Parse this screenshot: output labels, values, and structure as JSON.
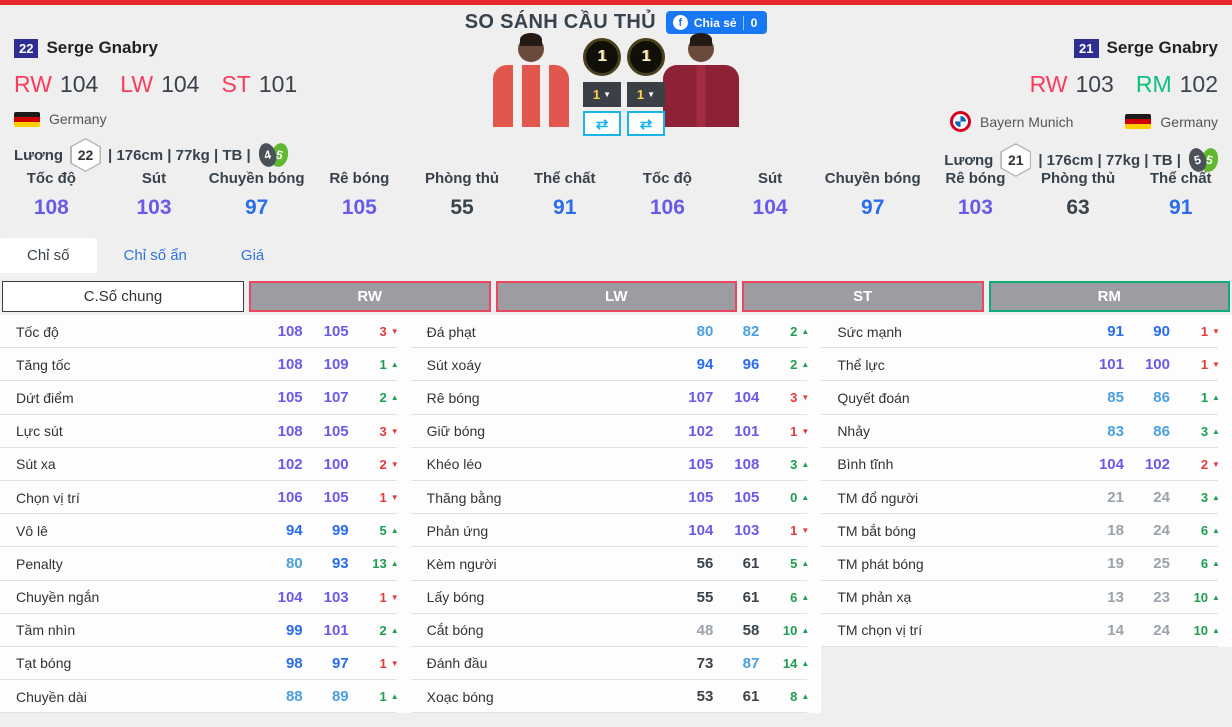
{
  "header": {
    "title": "SO SÁNH CẦU THỦ",
    "share": {
      "label": "Chia sẻ",
      "count": "0",
      "icon": "facebook-icon"
    }
  },
  "players": {
    "left": {
      "number": "22",
      "name": "Serge Gnabry",
      "positions": [
        {
          "pos": "RW",
          "ovr": "104",
          "color": "pink"
        },
        {
          "pos": "LW",
          "ovr": "104",
          "color": "pink"
        },
        {
          "pos": "ST",
          "ovr": "101",
          "color": "pink"
        }
      ],
      "nation": "Germany",
      "salary_label": "Lương",
      "salary": "22",
      "body_info": "| 176cm | 77kg | TB |",
      "feet": {
        "weak": "4",
        "strong": "5"
      }
    },
    "right": {
      "number": "21",
      "name": "Serge Gnabry",
      "positions": [
        {
          "pos": "RW",
          "ovr": "103",
          "color": "pink"
        },
        {
          "pos": "RM",
          "ovr": "102",
          "color": "green"
        }
      ],
      "club": "Bayern Munich",
      "nation": "Germany",
      "salary_label": "Lương",
      "salary": "21",
      "body_info": "| 176cm | 77kg | TB |",
      "feet": {
        "weak": "5",
        "strong": "5"
      }
    }
  },
  "controls": {
    "tiers": [
      "1",
      "1"
    ],
    "selects": [
      "1",
      "1"
    ],
    "swap_icon": "swap-arrows-icon"
  },
  "overview": {
    "items": [
      {
        "label": "Tốc độ",
        "value": 108
      },
      {
        "label": "Sút",
        "value": 103
      },
      {
        "label": "Chuyền bóng",
        "value": 97
      },
      {
        "label": "Rê bóng",
        "value": 105
      },
      {
        "label": "Phòng thủ",
        "value": 55
      },
      {
        "label": "Thể chất",
        "value": 91
      },
      {
        "label": "Tốc độ",
        "value": 106
      },
      {
        "label": "Sút",
        "value": 104
      },
      {
        "label": "Chuyền bóng",
        "value": 97
      },
      {
        "label": "Rê bóng",
        "value": 103
      },
      {
        "label": "Phòng thủ",
        "value": 63
      },
      {
        "label": "Thể chất",
        "value": 91
      }
    ]
  },
  "tabs": [
    {
      "label": "Chỉ số",
      "active": true
    },
    {
      "label": "Chỉ số ẩn",
      "active": false
    },
    {
      "label": "Giá",
      "active": false
    }
  ],
  "position_headers": [
    {
      "label": "C.Số chung",
      "variant": "plain"
    },
    {
      "label": "RW",
      "variant": "pink"
    },
    {
      "label": "LW",
      "variant": "pink"
    },
    {
      "label": "ST",
      "variant": "pink"
    },
    {
      "label": "RM",
      "variant": "green"
    }
  ],
  "comparison": {
    "columns": [
      {
        "rows": [
          {
            "label": "Tốc độ",
            "v1": 108,
            "v2": 105,
            "diff": 3,
            "dir": "down"
          },
          {
            "label": "Tăng tốc",
            "v1": 108,
            "v2": 109,
            "diff": 1,
            "dir": "up"
          },
          {
            "label": "Dứt điểm",
            "v1": 105,
            "v2": 107,
            "diff": 2,
            "dir": "up"
          },
          {
            "label": "Lực sút",
            "v1": 108,
            "v2": 105,
            "diff": 3,
            "dir": "down"
          },
          {
            "label": "Sút xa",
            "v1": 102,
            "v2": 100,
            "diff": 2,
            "dir": "down"
          },
          {
            "label": "Chọn vị trí",
            "v1": 106,
            "v2": 105,
            "diff": 1,
            "dir": "down"
          },
          {
            "label": "Vô lê",
            "v1": 94,
            "v2": 99,
            "diff": 5,
            "dir": "up"
          },
          {
            "label": "Penalty",
            "v1": 80,
            "v2": 93,
            "diff": 13,
            "dir": "up"
          },
          {
            "label": "Chuyền ngắn",
            "v1": 104,
            "v2": 103,
            "diff": 1,
            "dir": "down"
          },
          {
            "label": "Tầm nhìn",
            "v1": 99,
            "v2": 101,
            "diff": 2,
            "dir": "up"
          },
          {
            "label": "Tạt bóng",
            "v1": 98,
            "v2": 97,
            "diff": 1,
            "dir": "down"
          },
          {
            "label": "Chuyền dài",
            "v1": 88,
            "v2": 89,
            "diff": 1,
            "dir": "up"
          }
        ]
      },
      {
        "rows": [
          {
            "label": "Đá phạt",
            "v1": 80,
            "v2": 82,
            "diff": 2,
            "dir": "up"
          },
          {
            "label": "Sút xoáy",
            "v1": 94,
            "v2": 96,
            "diff": 2,
            "dir": "up"
          },
          {
            "label": "Rê bóng",
            "v1": 107,
            "v2": 104,
            "diff": 3,
            "dir": "down"
          },
          {
            "label": "Giữ bóng",
            "v1": 102,
            "v2": 101,
            "diff": 1,
            "dir": "down"
          },
          {
            "label": "Khéo léo",
            "v1": 105,
            "v2": 108,
            "diff": 3,
            "dir": "up"
          },
          {
            "label": "Thăng bằng",
            "v1": 105,
            "v2": 105,
            "diff": 0,
            "dir": "up"
          },
          {
            "label": "Phản ứng",
            "v1": 104,
            "v2": 103,
            "diff": 1,
            "dir": "down"
          },
          {
            "label": "Kèm người",
            "v1": 56,
            "v2": 61,
            "diff": 5,
            "dir": "up"
          },
          {
            "label": "Lấy bóng",
            "v1": 55,
            "v2": 61,
            "diff": 6,
            "dir": "up"
          },
          {
            "label": "Cắt bóng",
            "v1": 48,
            "v2": 58,
            "diff": 10,
            "dir": "up"
          },
          {
            "label": "Đánh đầu",
            "v1": 73,
            "v2": 87,
            "diff": 14,
            "dir": "up"
          },
          {
            "label": "Xoạc bóng",
            "v1": 53,
            "v2": 61,
            "diff": 8,
            "dir": "up"
          }
        ]
      },
      {
        "rows": [
          {
            "label": "Sức mạnh",
            "v1": 91,
            "v2": 90,
            "diff": 1,
            "dir": "down"
          },
          {
            "label": "Thể lực",
            "v1": 101,
            "v2": 100,
            "diff": 1,
            "dir": "down"
          },
          {
            "label": "Quyết đoán",
            "v1": 85,
            "v2": 86,
            "diff": 1,
            "dir": "up"
          },
          {
            "label": "Nhảy",
            "v1": 83,
            "v2": 86,
            "diff": 3,
            "dir": "up"
          },
          {
            "label": "Bình tĩnh",
            "v1": 104,
            "v2": 102,
            "diff": 2,
            "dir": "down"
          },
          {
            "label": "TM đổ người",
            "v1": 21,
            "v2": 24,
            "diff": 3,
            "dir": "up"
          },
          {
            "label": "TM bắt bóng",
            "v1": 18,
            "v2": 24,
            "diff": 6,
            "dir": "up"
          },
          {
            "label": "TM phát bóng",
            "v1": 19,
            "v2": 25,
            "diff": 6,
            "dir": "up"
          },
          {
            "label": "TM phản xạ",
            "v1": 13,
            "v2": 23,
            "diff": 10,
            "dir": "up"
          },
          {
            "label": "TM chọn vị trí",
            "v1": 14,
            "v2": 24,
            "diff": 10,
            "dir": "up"
          }
        ]
      }
    ]
  },
  "colors": {
    "top_bar_red": "#e8272e",
    "share_blue": "#1877f2",
    "link_blue": "#3074d9",
    "pos_pink": "#fb3b5c",
    "pos_green": "#0dbf7c",
    "val_purple": "#6a5ae8",
    "val_blue": "#2a6cec",
    "val_lightblue": "#4ba0e0",
    "val_dark": "#3a434c",
    "val_gray": "#9aa2ab",
    "diff_up": "#1d9e50",
    "diff_down": "#e23b3b",
    "swap_cyan": "#19b5ea"
  }
}
